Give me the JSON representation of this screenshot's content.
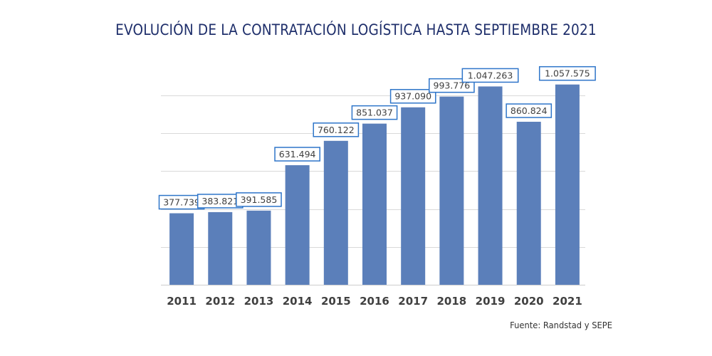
{
  "chart_data": {
    "type": "bar",
    "title": "EVOLUCIÓN DE LA CONTRATACIÓN LOGÍSTICA HASTA SEPTIEMBRE 2021",
    "xlabel": "",
    "ylabel": "",
    "categories": [
      "2011",
      "2012",
      "2013",
      "2014",
      "2015",
      "2016",
      "2017",
      "2018",
      "2019",
      "2020",
      "2021"
    ],
    "values": [
      377739,
      383821,
      391585,
      631494,
      760122,
      851037,
      937090,
      993776,
      1047263,
      860824,
      1057575
    ],
    "data_labels": [
      "377.739",
      "383.821",
      "391.585",
      "631.494",
      "760.122",
      "851.037",
      "937.090",
      "993.776",
      "1.047.263",
      "860.824",
      "1.057.575"
    ],
    "ylim": [
      0,
      1000000
    ],
    "ytick_step": 200000,
    "y_tick_labels_visible": false,
    "grid": true,
    "legend": "none",
    "colors": {
      "bar": "#5b7fba",
      "label_border": "#2e75c9",
      "grid": "#d9d9d9",
      "title": "#1f2f6b",
      "axis_text": "#404040"
    }
  },
  "source": "Fuente: Randstad y SEPE"
}
